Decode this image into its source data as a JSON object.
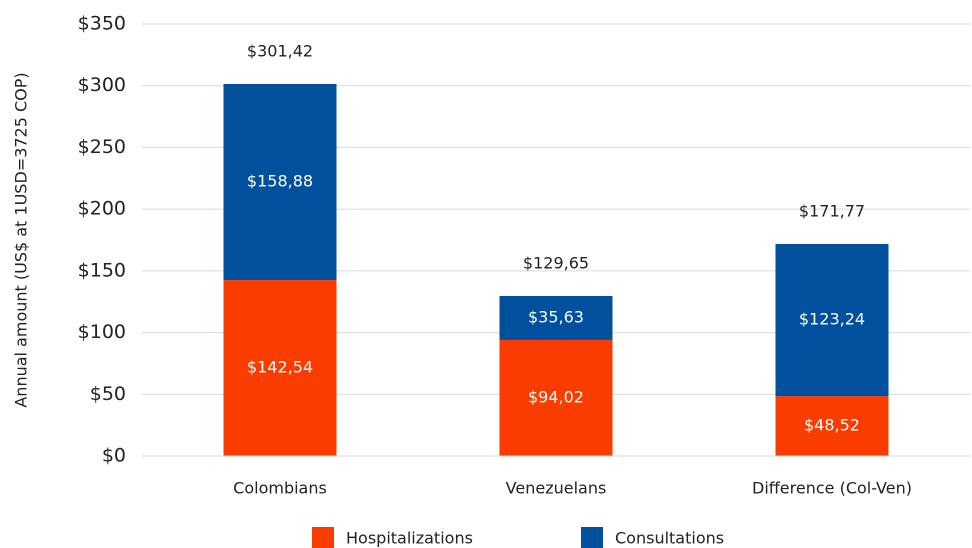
{
  "chart_data": {
    "type": "stacked_bar",
    "ylabel": "Annual amount (US$ at 1USD=3725 COP)",
    "categories": [
      "Colombians",
      "Venezuelans",
      "Difference (Col-Ven)"
    ],
    "series": [
      {
        "name": "Hospitalizations",
        "color": "#fa3c00",
        "values": [
          142.54,
          94.02,
          48.52
        ],
        "value_labels": [
          "$142,54",
          "$94,02",
          "$48,52"
        ]
      },
      {
        "name": "Consultations",
        "color": "#00509e",
        "values": [
          158.88,
          35.63,
          123.24
        ],
        "value_labels": [
          "$158,88",
          "$35,63",
          "$123,24"
        ]
      }
    ],
    "totals": [
      301.42,
      129.65,
      171.77
    ],
    "total_labels": [
      "$301,42",
      "$129,65",
      "$171,77"
    ],
    "ylim": [
      0,
      350
    ],
    "yticks": [
      {
        "value": 0,
        "label": "$0"
      },
      {
        "value": 50,
        "label": "$50"
      },
      {
        "value": 100,
        "label": "$100"
      },
      {
        "value": 150,
        "label": "$150"
      },
      {
        "value": 200,
        "label": "$200"
      },
      {
        "value": 250,
        "label": "$250"
      },
      {
        "value": 300,
        "label": "$300"
      },
      {
        "value": 350,
        "label": "$350"
      }
    ],
    "grid": true,
    "legend": "bottom"
  }
}
